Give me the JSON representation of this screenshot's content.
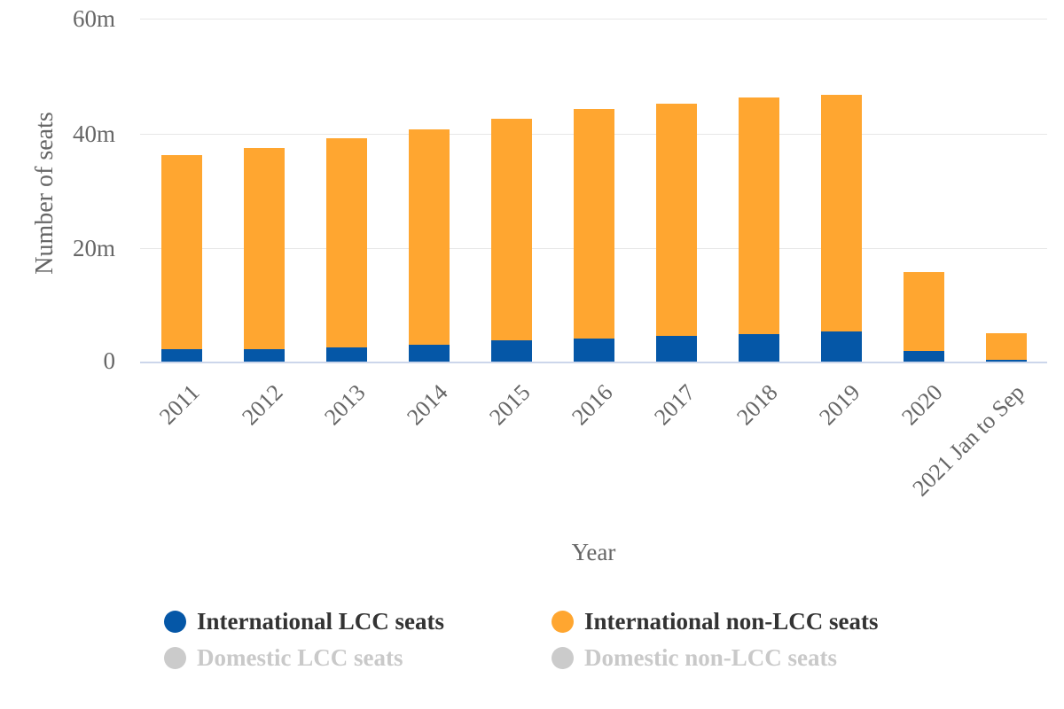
{
  "colors": {
    "lcc_blue": "#0557A7",
    "non_lcc_orange": "#FFA630",
    "gridline": "#E6E6E6",
    "axis_line": "#CCD6EB",
    "axis_text": "#666666",
    "legend_text_active": "#333333",
    "legend_text_disabled": "#C9C9C9",
    "legend_dot_disabled": "#CBCBCB",
    "background": "#FFFFFF"
  },
  "chart_data": {
    "type": "bar",
    "stacked": true,
    "title": "",
    "xlabel": "Year",
    "ylabel": "Number of seats",
    "unit": "millions of seats",
    "ylim": [
      0,
      60
    ],
    "yticks": [
      "60m",
      "40m",
      "20m",
      "0"
    ],
    "grid": true,
    "legend_position": "bottom",
    "categories": [
      "2011",
      "2012",
      "2013",
      "2014",
      "2015",
      "2016",
      "2017",
      "2018",
      "2019",
      "2020",
      "2021 Jan to Sep"
    ],
    "series": [
      {
        "name": "International LCC seats",
        "color": "#0557A7",
        "visible": true,
        "values": [
          2.2,
          2.2,
          2.5,
          3.0,
          3.7,
          4.0,
          4.5,
          4.8,
          5.3,
          1.9,
          0.3
        ]
      },
      {
        "name": "International non-LCC seats",
        "color": "#FFA630",
        "visible": true,
        "values": [
          33.8,
          34.9,
          36.3,
          37.4,
          38.5,
          39.9,
          40.4,
          41.2,
          41.1,
          13.7,
          4.6
        ]
      },
      {
        "name": "Domestic LCC seats",
        "color": "#CBCBCB",
        "visible": false,
        "values": []
      },
      {
        "name": "Domestic non-LCC seats",
        "color": "#CBCBCB",
        "visible": false,
        "values": []
      }
    ]
  }
}
